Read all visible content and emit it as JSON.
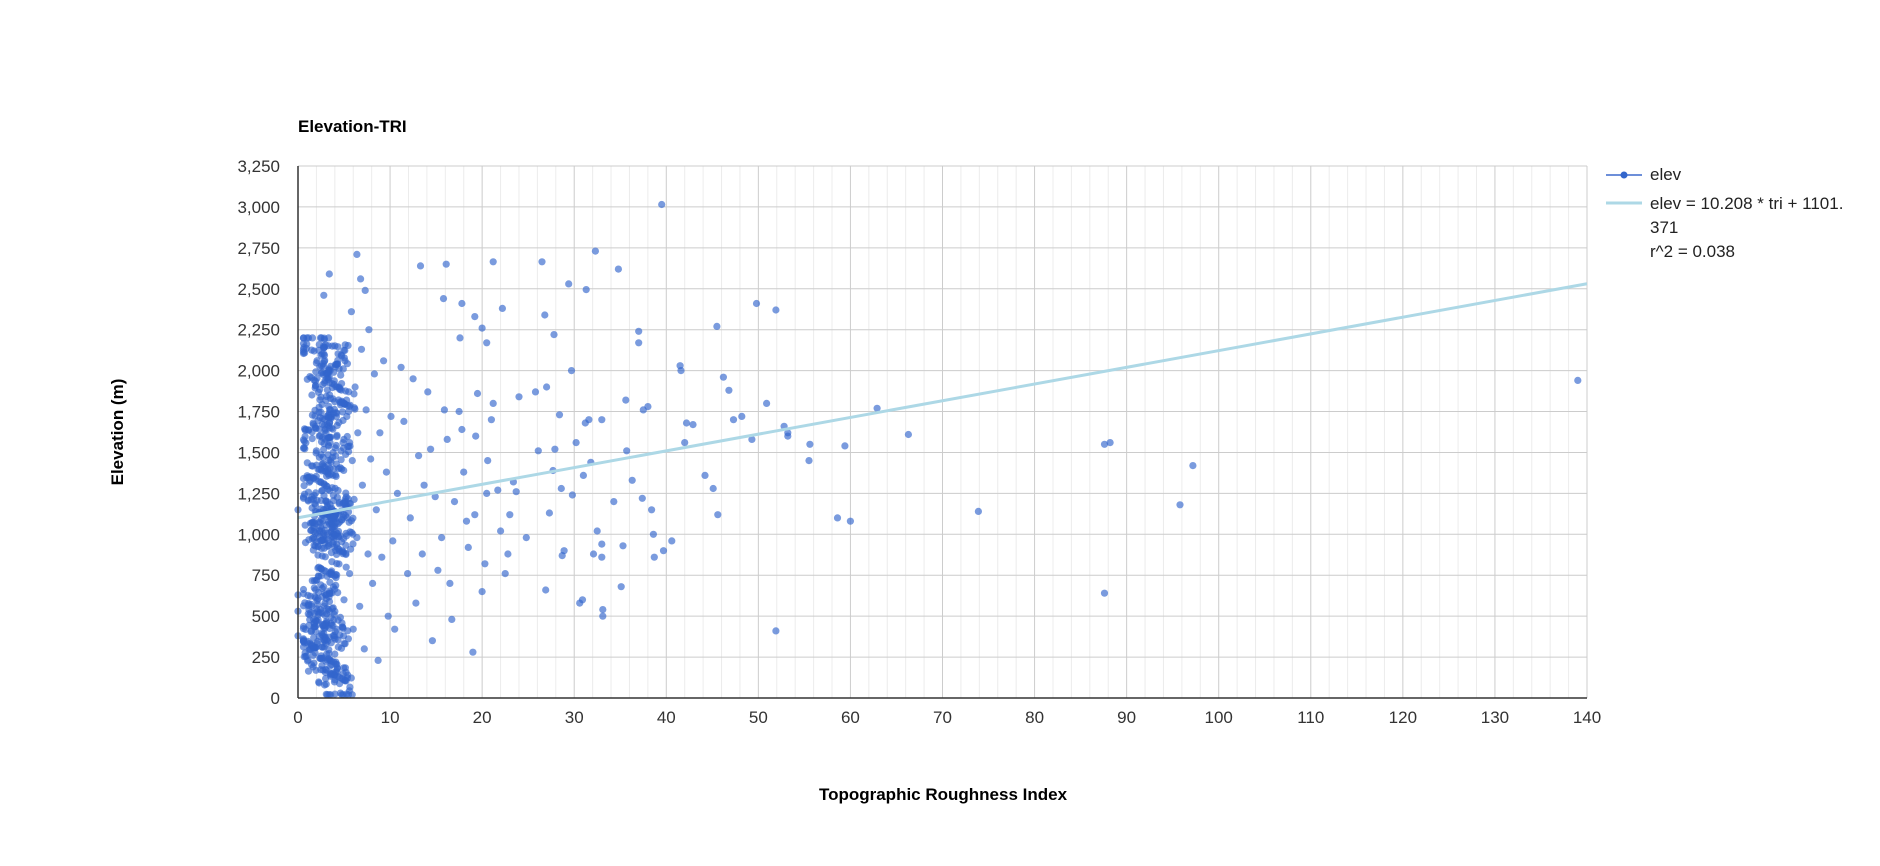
{
  "chart_data": {
    "type": "scatter",
    "title": "Elevation-TRI",
    "xlabel": "Topographic Roughness Index",
    "ylabel": "Elevation (m)",
    "xlim": [
      0,
      140
    ],
    "ylim": [
      0,
      3250
    ],
    "x_ticks": [
      0,
      10,
      20,
      30,
      40,
      50,
      60,
      70,
      80,
      90,
      100,
      110,
      120,
      130,
      140
    ],
    "x_tick_labels": [
      "0",
      "10",
      "20",
      "30",
      "40",
      "50",
      "60",
      "70",
      "80",
      "90",
      "100",
      "110",
      "120",
      "130",
      "140"
    ],
    "y_ticks": [
      0,
      250,
      500,
      750,
      1000,
      1250,
      1500,
      1750,
      2000,
      2250,
      2500,
      2750,
      3000,
      3250
    ],
    "y_tick_labels": [
      "0",
      "250",
      "500",
      "750",
      "1,000",
      "1,250",
      "1,500",
      "1,750",
      "2,000",
      "2,250",
      "2,500",
      "2,750",
      "3,000",
      "3,250"
    ],
    "grid": true,
    "legend_position": "right",
    "legend": {
      "series_label": "elev",
      "trend_line1": "elev = 10.208 * tri + 1101.",
      "trend_line2": "371",
      "trend_line3": "r^2 = 0.038"
    },
    "colors": {
      "points": "#3366cc",
      "trendline": "#add8e6",
      "grid": "#cccccc",
      "axis": "#333333"
    },
    "trendline": {
      "slope": 10.208,
      "intercept": 1101.371,
      "r2": 0.038
    },
    "series": [
      {
        "name": "elev",
        "points": [
          [
            39.5,
            3015
          ],
          [
            32.3,
            2730
          ],
          [
            6.4,
            2710
          ],
          [
            13.3,
            2640
          ],
          [
            16.1,
            2650
          ],
          [
            21.2,
            2665
          ],
          [
            26.5,
            2665
          ],
          [
            34.8,
            2620
          ],
          [
            3.4,
            2590
          ],
          [
            6.8,
            2560
          ],
          [
            29.4,
            2530
          ],
          [
            31.3,
            2495
          ],
          [
            7.3,
            2490
          ],
          [
            2.8,
            2460
          ],
          [
            49.8,
            2410
          ],
          [
            51.9,
            2370
          ],
          [
            22.2,
            2380
          ],
          [
            26.8,
            2340
          ],
          [
            45.5,
            2270
          ],
          [
            37.0,
            2240
          ],
          [
            37.0,
            2170
          ],
          [
            41.5,
            2030
          ],
          [
            41.6,
            2000
          ],
          [
            27.8,
            2220
          ],
          [
            17.6,
            2200
          ],
          [
            20.5,
            2170
          ],
          [
            15.8,
            2440
          ],
          [
            17.8,
            2410
          ],
          [
            19.2,
            2330
          ],
          [
            20.0,
            2260
          ],
          [
            139.0,
            1940
          ],
          [
            88.2,
            1560
          ],
          [
            87.6,
            1550
          ],
          [
            97.2,
            1420
          ],
          [
            95.8,
            1180
          ],
          [
            73.9,
            1140
          ],
          [
            60.0,
            1080
          ],
          [
            58.6,
            1100
          ],
          [
            87.6,
            640
          ],
          [
            51.9,
            410
          ],
          [
            62.9,
            1770
          ],
          [
            66.3,
            1610
          ],
          [
            59.4,
            1540
          ],
          [
            55.6,
            1550
          ],
          [
            55.5,
            1450
          ],
          [
            53.2,
            1620
          ],
          [
            53.2,
            1600
          ],
          [
            52.8,
            1660
          ],
          [
            50.9,
            1800
          ],
          [
            49.3,
            1580
          ],
          [
            48.2,
            1720
          ],
          [
            47.3,
            1700
          ],
          [
            46.8,
            1880
          ],
          [
            46.2,
            1960
          ],
          [
            45.6,
            1120
          ],
          [
            45.1,
            1280
          ],
          [
            44.2,
            1360
          ],
          [
            42.9,
            1670
          ],
          [
            42.2,
            1680
          ],
          [
            42.0,
            1560
          ],
          [
            40.6,
            960
          ],
          [
            39.7,
            900
          ],
          [
            38.7,
            860
          ],
          [
            38.6,
            1000
          ],
          [
            38.4,
            1150
          ],
          [
            38.0,
            1780
          ],
          [
            37.5,
            1760
          ],
          [
            37.4,
            1220
          ],
          [
            36.3,
            1330
          ],
          [
            35.7,
            1510
          ],
          [
            35.6,
            1820
          ],
          [
            35.3,
            930
          ],
          [
            35.1,
            680
          ],
          [
            34.3,
            1200
          ],
          [
            33.0,
            1700
          ],
          [
            33.0,
            940
          ],
          [
            33.0,
            860
          ],
          [
            33.1,
            540
          ],
          [
            33.1,
            500
          ],
          [
            32.5,
            1020
          ],
          [
            32.1,
            880
          ],
          [
            31.8,
            1440
          ],
          [
            31.6,
            1700
          ],
          [
            31.2,
            1680
          ],
          [
            31.0,
            1360
          ],
          [
            30.9,
            600
          ],
          [
            30.6,
            580
          ],
          [
            30.2,
            1560
          ],
          [
            29.8,
            1240
          ],
          [
            29.7,
            2000
          ],
          [
            28.9,
            900
          ],
          [
            28.7,
            870
          ],
          [
            28.6,
            1280
          ],
          [
            28.4,
            1730
          ],
          [
            27.9,
            1520
          ],
          [
            27.7,
            1390
          ],
          [
            27.3,
            1130
          ],
          [
            27.0,
            1900
          ],
          [
            26.9,
            660
          ],
          [
            26.1,
            1510
          ],
          [
            25.8,
            1870
          ],
          [
            24.8,
            980
          ],
          [
            24.0,
            1840
          ],
          [
            23.7,
            1260
          ],
          [
            23.4,
            1320
          ],
          [
            23.0,
            1120
          ],
          [
            22.8,
            880
          ],
          [
            22.5,
            760
          ],
          [
            22.0,
            1020
          ],
          [
            21.7,
            1270
          ],
          [
            21.2,
            1800
          ],
          [
            21.0,
            1700
          ],
          [
            20.6,
            1450
          ],
          [
            20.5,
            1250
          ],
          [
            20.3,
            820
          ],
          [
            20.0,
            650
          ],
          [
            19.5,
            1860
          ],
          [
            19.3,
            1600
          ],
          [
            19.2,
            1120
          ],
          [
            19.0,
            280
          ],
          [
            18.5,
            920
          ],
          [
            18.3,
            1080
          ],
          [
            18.0,
            1380
          ],
          [
            17.8,
            1640
          ],
          [
            17.5,
            1750
          ],
          [
            17.0,
            1200
          ],
          [
            16.7,
            480
          ],
          [
            16.5,
            700
          ],
          [
            16.2,
            1580
          ],
          [
            15.9,
            1760
          ],
          [
            15.6,
            980
          ],
          [
            15.2,
            780
          ],
          [
            14.9,
            1230
          ],
          [
            14.6,
            350
          ],
          [
            14.4,
            1520
          ],
          [
            14.1,
            1870
          ],
          [
            13.7,
            1300
          ],
          [
            13.5,
            880
          ],
          [
            13.1,
            1480
          ],
          [
            12.8,
            580
          ],
          [
            12.5,
            1950
          ],
          [
            12.2,
            1100
          ],
          [
            11.9,
            760
          ],
          [
            11.5,
            1690
          ],
          [
            11.2,
            2020
          ],
          [
            10.8,
            1250
          ],
          [
            10.5,
            420
          ],
          [
            10.3,
            960
          ],
          [
            10.1,
            1720
          ],
          [
            9.8,
            500
          ],
          [
            9.6,
            1380
          ],
          [
            9.3,
            2060
          ],
          [
            9.1,
            860
          ],
          [
            8.9,
            1620
          ],
          [
            8.7,
            230
          ],
          [
            8.5,
            1150
          ],
          [
            8.3,
            1980
          ],
          [
            8.1,
            700
          ],
          [
            7.9,
            1460
          ],
          [
            7.7,
            2250
          ],
          [
            7.6,
            880
          ],
          [
            7.4,
            1760
          ],
          [
            7.2,
            300
          ],
          [
            7.0,
            1300
          ],
          [
            6.9,
            2130
          ],
          [
            6.7,
            560
          ],
          [
            6.5,
            1620
          ],
          [
            6.4,
            980
          ],
          [
            6.2,
            1900
          ],
          [
            6.0,
            420
          ],
          [
            5.9,
            1450
          ],
          [
            5.8,
            2360
          ],
          [
            5.6,
            760
          ],
          [
            5.5,
            1750
          ],
          [
            5.4,
            140
          ],
          [
            5.2,
            1180
          ],
          [
            5.1,
            2060
          ],
          [
            5.0,
            600
          ],
          [
            4.9,
            1560
          ],
          [
            4.8,
            900
          ]
        ],
        "dense_cluster_pattern": [
          [
            1.5,
            400
          ],
          [
            2.5,
            520
          ],
          [
            3.3,
            460
          ],
          [
            4.1,
            380
          ],
          [
            1.9,
            620
          ],
          [
            2.9,
            700
          ],
          [
            3.7,
            820
          ],
          [
            4.5,
            940
          ],
          [
            2.2,
            1020
          ],
          [
            3.1,
            1120
          ],
          [
            4.0,
            1200
          ],
          [
            1.7,
            1280
          ],
          [
            2.6,
            1360
          ],
          [
            3.5,
            1440
          ],
          [
            4.3,
            1520
          ],
          [
            2.0,
            1600
          ],
          [
            2.9,
            1680
          ],
          [
            3.8,
            1760
          ],
          [
            4.6,
            1840
          ],
          [
            2.4,
            1920
          ],
          [
            3.2,
            2000
          ],
          [
            4.1,
            2080
          ],
          [
            1.8,
            2160
          ],
          [
            2.7,
            240
          ],
          [
            3.6,
            160
          ],
          [
            4.4,
            80
          ],
          [
            2.1,
            300
          ],
          [
            3.0,
            980
          ],
          [
            3.9,
            1060
          ],
          [
            4.7,
            1140
          ]
        ]
      }
    ]
  }
}
